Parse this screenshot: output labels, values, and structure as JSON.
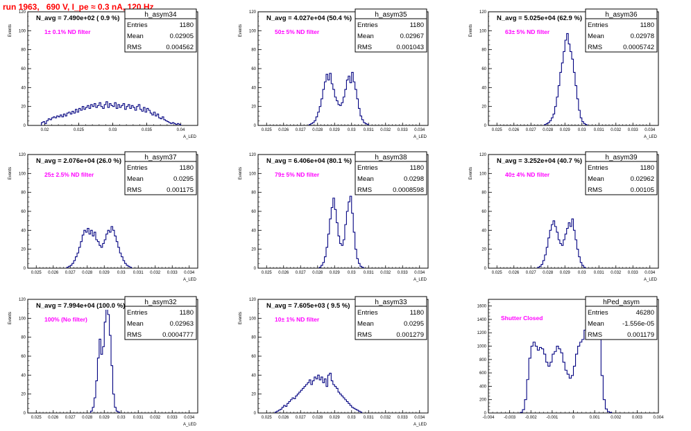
{
  "page": {
    "title": "run 1963,   690 V, I_pe ≈ 0.3 nA, 120 Hz"
  },
  "colors": {
    "histogram": "#000080",
    "annotation": "#ff00ff",
    "page_title": "#ff0000",
    "axis": "#000000"
  },
  "chart_data": [
    {
      "type": "histogram",
      "hist_name": "h_asym34",
      "nav_text": "N_avg = 7.490e+02 ( 0.9 %)",
      "filter_text": "1± 0.1% ND filter",
      "stats": {
        "entries": "1180",
        "mean": "0.02905",
        "rms": "0.004562"
      },
      "ylabel": "Events",
      "xlabel": "A_LED",
      "xlim": [
        0.0175,
        0.0425
      ],
      "ylim": [
        0,
        120
      ],
      "xticks": [
        "0.02",
        "0.025",
        "0.03",
        "0.035",
        "0.04"
      ],
      "yticks": [
        "0",
        "20",
        "40",
        "60",
        "80",
        "100",
        "120"
      ],
      "xstart": 0.0195,
      "binwidth": 0.00025,
      "counts": [
        3,
        4,
        2,
        5,
        7,
        6,
        8,
        9,
        8,
        10,
        9,
        11,
        9,
        12,
        10,
        13,
        14,
        12,
        15,
        13,
        17,
        14,
        18,
        16,
        20,
        17,
        19,
        21,
        18,
        22,
        20,
        23,
        19,
        21,
        24,
        20,
        18,
        22,
        25,
        19,
        23,
        21,
        20,
        24,
        18,
        22,
        19,
        21,
        23,
        17,
        20,
        22,
        18,
        21,
        19,
        16,
        20,
        22,
        17,
        15,
        19,
        14,
        18,
        16,
        13,
        11,
        14,
        10,
        12,
        8,
        7,
        9,
        6,
        5,
        4,
        3,
        2,
        3,
        2,
        1,
        2,
        1
      ]
    },
    {
      "type": "histogram",
      "hist_name": "h_asym35",
      "nav_text": "N_avg = 4.027e+04 (50.4 %)",
      "filter_text": "50± 5% ND filter",
      "stats": {
        "entries": "1180",
        "mean": "0.02967",
        "rms": "0.001043"
      },
      "ylabel": "Events",
      "xlabel": "A_LED",
      "xlim": [
        0.0245,
        0.0345
      ],
      "ylim": [
        0,
        120
      ],
      "xticks": [
        "0.025",
        "0.026",
        "0.027",
        "0.028",
        "0.029",
        "0.03",
        "0.031",
        "0.032",
        "0.033",
        "0.034"
      ],
      "yticks": [
        "0",
        "20",
        "40",
        "60",
        "80",
        "100",
        "120"
      ],
      "xstart": 0.0275,
      "binwidth": 0.0001,
      "counts": [
        1,
        2,
        3,
        5,
        9,
        14,
        20,
        28,
        38,
        46,
        54,
        48,
        55,
        44,
        38,
        30,
        26,
        22,
        21,
        24,
        30,
        38,
        48,
        52,
        45,
        56,
        46,
        38,
        28,
        18,
        10,
        6,
        3,
        2,
        1
      ]
    },
    {
      "type": "histogram",
      "hist_name": "h_asym36",
      "nav_text": "N_avg = 5.025e+04 (62.9 %)",
      "filter_text": "63± 5% ND filter",
      "stats": {
        "entries": "1180",
        "mean": "0.02978",
        "rms": "0.0005742"
      },
      "ylabel": "Events",
      "xlabel": "A_LED",
      "xlim": [
        0.0245,
        0.0345
      ],
      "ylim": [
        0,
        120
      ],
      "xticks": [
        "0.025",
        "0.026",
        "0.027",
        "0.028",
        "0.029",
        "0.03",
        "0.031",
        "0.032",
        "0.033",
        "0.034"
      ],
      "yticks": [
        "0",
        "20",
        "40",
        "60",
        "80",
        "100",
        "120"
      ],
      "xstart": 0.0278,
      "binwidth": 0.0001,
      "counts": [
        1,
        2,
        3,
        5,
        8,
        12,
        20,
        30,
        42,
        56,
        66,
        78,
        90,
        97,
        86,
        78,
        70,
        56,
        42,
        28,
        16,
        8,
        4,
        2,
        1
      ]
    },
    {
      "type": "histogram",
      "hist_name": "h_asym37",
      "nav_text": "N_avg = 2.076e+04 (26.0 %)",
      "filter_text": "25± 2.5% ND filter",
      "stats": {
        "entries": "1180",
        "mean": "0.0295",
        "rms": "0.001175"
      },
      "ylabel": "Events",
      "xlabel": "A_LED",
      "xlim": [
        0.0245,
        0.0345
      ],
      "ylim": [
        0,
        120
      ],
      "xticks": [
        "0.025",
        "0.026",
        "0.027",
        "0.028",
        "0.029",
        "0.03",
        "0.031",
        "0.032",
        "0.033",
        "0.034"
      ],
      "yticks": [
        "0",
        "20",
        "40",
        "60",
        "80",
        "100",
        "120"
      ],
      "xstart": 0.0268,
      "binwidth": 0.0001,
      "counts": [
        1,
        2,
        3,
        5,
        8,
        12,
        16,
        22,
        28,
        35,
        40,
        38,
        42,
        36,
        40,
        34,
        38,
        30,
        28,
        24,
        22,
        26,
        30,
        36,
        40,
        38,
        44,
        40,
        34,
        28,
        22,
        16,
        12,
        8,
        5,
        3,
        2,
        1
      ]
    },
    {
      "type": "histogram",
      "hist_name": "h_asym38",
      "nav_text": "N_avg = 6.406e+04 (80.1 %)",
      "filter_text": "79± 5% ND filter",
      "stats": {
        "entries": "1180",
        "mean": "0.0298",
        "rms": "0.0008598"
      },
      "ylabel": "Events",
      "xlabel": "A_LED",
      "xlim": [
        0.0245,
        0.0345
      ],
      "ylim": [
        0,
        120
      ],
      "xticks": [
        "0.025",
        "0.026",
        "0.027",
        "0.028",
        "0.029",
        "0.03",
        "0.031",
        "0.032",
        "0.033",
        "0.034"
      ],
      "yticks": [
        "0",
        "20",
        "40",
        "60",
        "80",
        "100",
        "120"
      ],
      "xstart": 0.0281,
      "binwidth": 0.0001,
      "counts": [
        1,
        3,
        6,
        12,
        22,
        36,
        52,
        64,
        74,
        62,
        48,
        34,
        26,
        24,
        30,
        46,
        60,
        70,
        76,
        58,
        38,
        20,
        10,
        5,
        2,
        1
      ]
    },
    {
      "type": "histogram",
      "hist_name": "h_asym39",
      "nav_text": "N_avg = 3.252e+04 (40.7 %)",
      "filter_text": "40± 4% ND filter",
      "stats": {
        "entries": "1180",
        "mean": "0.02962",
        "rms": "0.00105"
      },
      "ylabel": "Events",
      "xlabel": "A_LED",
      "xlim": [
        0.0245,
        0.0345
      ],
      "ylim": [
        0,
        120
      ],
      "xticks": [
        "0.025",
        "0.026",
        "0.027",
        "0.028",
        "0.029",
        "0.03",
        "0.031",
        "0.032",
        "0.033",
        "0.034"
      ],
      "yticks": [
        "0",
        "20",
        "40",
        "60",
        "80",
        "100",
        "120"
      ],
      "xstart": 0.0274,
      "binwidth": 0.0001,
      "counts": [
        1,
        2,
        4,
        8,
        14,
        22,
        32,
        40,
        46,
        50,
        44,
        38,
        30,
        26,
        24,
        30,
        36,
        42,
        48,
        44,
        52,
        40,
        30,
        20,
        12,
        6,
        3,
        1
      ]
    },
    {
      "type": "histogram",
      "hist_name": "h_asym32",
      "nav_text": "N_avg = 7.994e+04 (100.0 %)",
      "filter_text": "100% (No filter)",
      "stats": {
        "entries": "1180",
        "mean": "0.02963",
        "rms": "0.0004777"
      },
      "ylabel": "Events",
      "xlabel": "A_LED",
      "xlim": [
        0.0245,
        0.0345
      ],
      "ylim": [
        0,
        120
      ],
      "xticks": [
        "0.025",
        "0.026",
        "0.027",
        "0.028",
        "0.029",
        "0.03",
        "0.031",
        "0.032",
        "0.033",
        "0.034"
      ],
      "yticks": [
        "0",
        "20",
        "40",
        "60",
        "80",
        "100",
        "120"
      ],
      "xstart": 0.0282,
      "binwidth": 0.0001,
      "counts": [
        2,
        6,
        16,
        34,
        58,
        78,
        62,
        70,
        96,
        110,
        104,
        82,
        50,
        20,
        6,
        2,
        1
      ]
    },
    {
      "type": "histogram",
      "hist_name": "h_asym33",
      "nav_text": "N_avg = 7.605e+03 ( 9.5 %)",
      "filter_text": "10± 1% ND filter",
      "stats": {
        "entries": "1180",
        "mean": "0.0295",
        "rms": "0.001279"
      },
      "ylabel": "Events",
      "xlabel": "A_LED",
      "xlim": [
        0.0245,
        0.0345
      ],
      "ylim": [
        0,
        120
      ],
      "xticks": [
        "0.025",
        "0.026",
        "0.027",
        "0.028",
        "0.029",
        "0.03",
        "0.031",
        "0.032",
        "0.033",
        "0.034"
      ],
      "yticks": [
        "0",
        "20",
        "40",
        "60",
        "80",
        "100",
        "120"
      ],
      "xstart": 0.0255,
      "binwidth": 0.0001,
      "counts": [
        1,
        2,
        3,
        4,
        6,
        8,
        7,
        10,
        12,
        14,
        16,
        15,
        18,
        20,
        22,
        24,
        26,
        28,
        30,
        32,
        35,
        30,
        34,
        38,
        36,
        40,
        35,
        38,
        32,
        36,
        28,
        40,
        42,
        34,
        30,
        28,
        26,
        22,
        20,
        18,
        16,
        14,
        12,
        10,
        8,
        6,
        5,
        4,
        3,
        2,
        1
      ]
    },
    {
      "type": "histogram",
      "hist_name": "hPed_asym",
      "nav_text": "",
      "filter_text": "Shutter Closed",
      "stats": {
        "entries": "46280",
        "mean": "-1.556e-05",
        "rms": "0.001179"
      },
      "ylabel": "",
      "xlabel": "",
      "xlim": [
        -0.004,
        0.004
      ],
      "ylim": [
        0,
        1700
      ],
      "xticks": [
        "-0.004",
        "-0.003",
        "-0.002",
        "-0.001",
        "0",
        "0.001",
        "0.002",
        "0.003",
        "0.004"
      ],
      "yticks": [
        "0",
        "200",
        "400",
        "600",
        "800",
        "1000",
        "1200",
        "1400",
        "1600"
      ],
      "xstart": -0.0025,
      "binwidth": 0.0001,
      "counts": [
        10,
        50,
        200,
        500,
        820,
        1000,
        1060,
        1000,
        940,
        980,
        960,
        880,
        760,
        700,
        760,
        880,
        920,
        1000,
        960,
        900,
        760,
        640,
        580,
        520,
        560,
        700,
        880,
        1000,
        1060,
        1100,
        1240,
        1420,
        1540,
        1600,
        1560,
        1650,
        1500,
        1100,
        560,
        200,
        60,
        20,
        8
      ]
    }
  ]
}
